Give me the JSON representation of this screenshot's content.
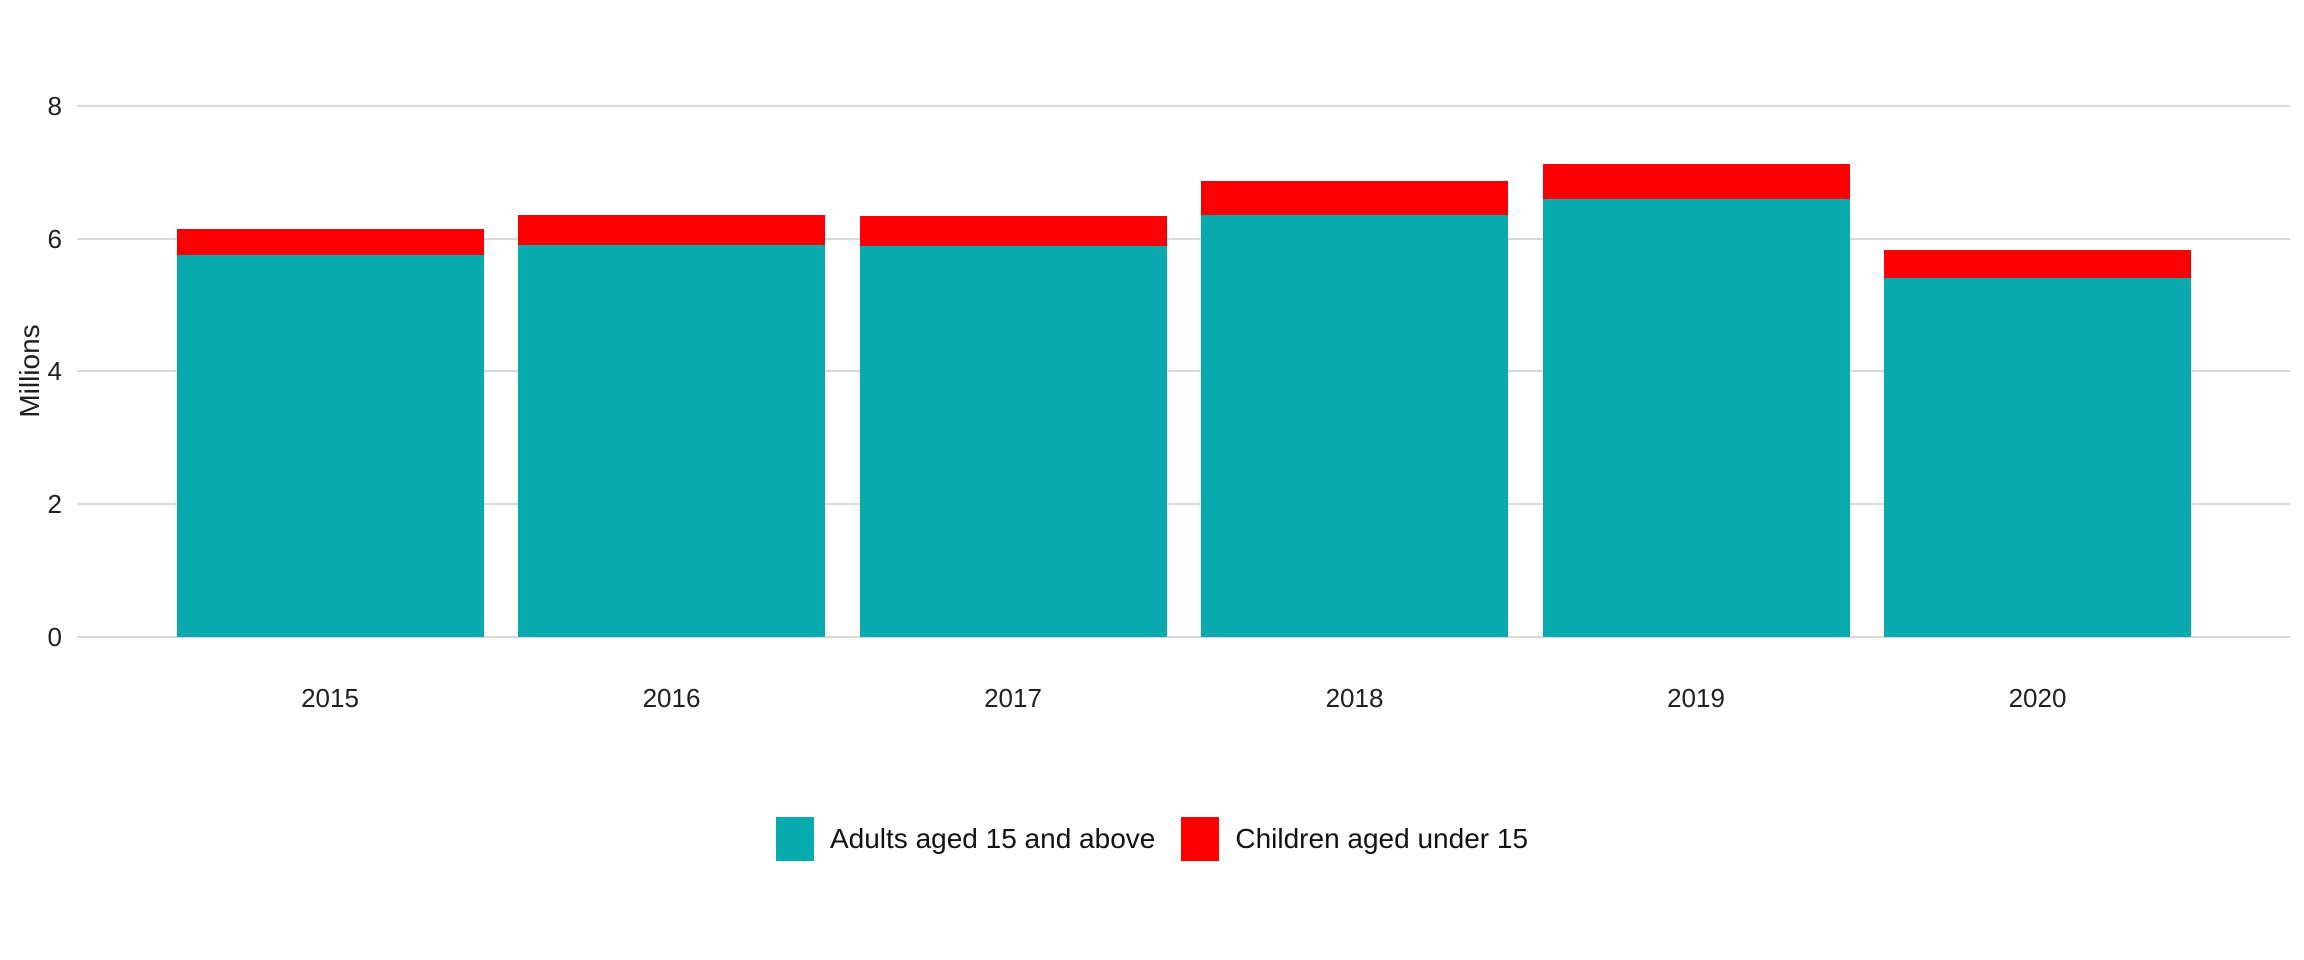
{
  "chart_data": {
    "type": "bar",
    "stacked": true,
    "title": "",
    "xlabel": "",
    "ylabel": "Millions",
    "categories": [
      "2015",
      "2016",
      "2017",
      "2018",
      "2019",
      "2020"
    ],
    "series": [
      {
        "name": "Adults aged 15 and above",
        "color": "#08abad",
        "values": [
          5.76,
          5.9,
          5.89,
          6.35,
          6.6,
          5.41
        ]
      },
      {
        "name": "Children aged under 15",
        "color": "#fb0000",
        "values": [
          0.39,
          0.45,
          0.45,
          0.51,
          0.53,
          0.42
        ]
      }
    ],
    "totals": [
      6.15,
      6.35,
      6.34,
      6.86,
      7.13,
      5.83
    ],
    "ylim": [
      0,
      8
    ],
    "yticks": [
      0,
      2,
      4,
      6,
      8
    ],
    "grid": "horizontal-only",
    "gridline_color": "#d9d9d9",
    "axis_text_color": "#1f1f1f",
    "background_color": "#ffffff",
    "legend_position": "bottom-center"
  }
}
